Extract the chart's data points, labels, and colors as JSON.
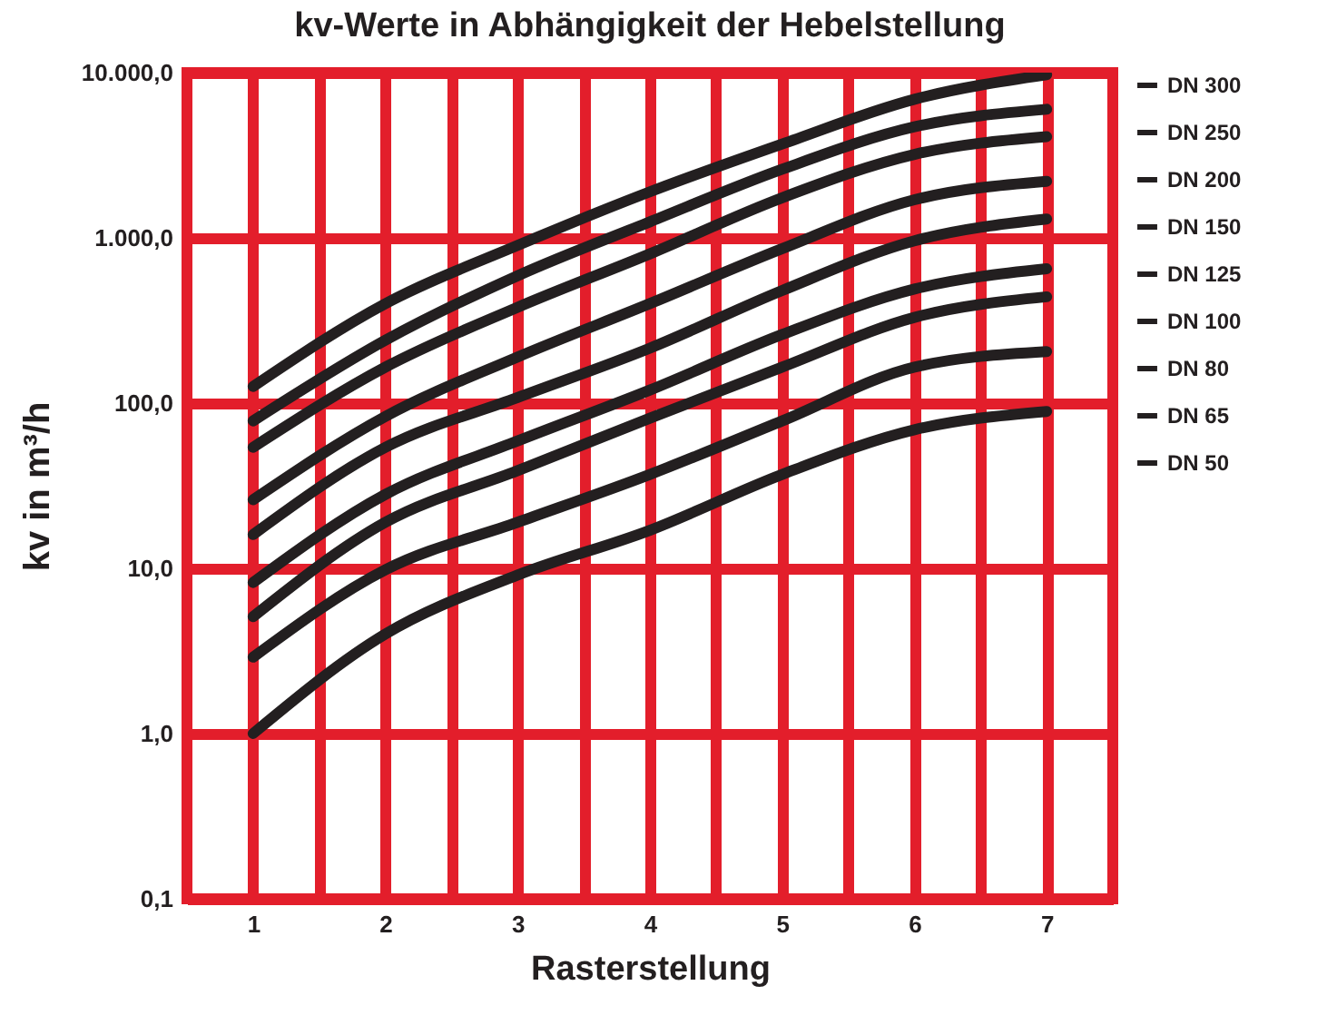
{
  "chart_data": {
    "type": "line",
    "title": "kv-Werte in Abhängigkeit der Hebelstellung",
    "xlabel": "Rasterstellung",
    "ylabel": "kv in m³/h",
    "x": [
      1,
      2,
      3,
      4,
      5,
      6,
      7
    ],
    "series": [
      {
        "name": "DN 300",
        "color": "#231f20",
        "values": [
          126,
          400,
          900,
          1900,
          3700,
          6900,
          9700
        ]
      },
      {
        "name": "DN 250",
        "color": "#231f20",
        "values": [
          78,
          240,
          590,
          1250,
          2600,
          4700,
          6000
        ]
      },
      {
        "name": "DN 200",
        "color": "#231f20",
        "values": [
          54,
          165,
          380,
          800,
          1750,
          3200,
          4100
        ]
      },
      {
        "name": "DN 150",
        "color": "#231f20",
        "values": [
          26,
          83,
          190,
          400,
          860,
          1700,
          2200
        ]
      },
      {
        "name": "DN 125",
        "color": "#231f20",
        "values": [
          16,
          54,
          108,
          215,
          480,
          960,
          1300
        ]
      },
      {
        "name": "DN 100",
        "color": "#231f20",
        "values": [
          8.2,
          28,
          59,
          120,
          260,
          490,
          650
        ]
      },
      {
        "name": "DN 80",
        "color": "#231f20",
        "values": [
          5.1,
          19,
          39,
          81,
          165,
          330,
          440
        ]
      },
      {
        "name": "DN 65",
        "color": "#231f20",
        "values": [
          2.9,
          9.8,
          19,
          37,
          78,
          165,
          205
        ]
      },
      {
        "name": "DN 50",
        "color": "#231f20",
        "values": [
          1.0,
          4.0,
          9.1,
          17,
          37,
          69,
          89
        ]
      }
    ],
    "log": "y",
    "xlim": [
      0.5,
      7.5
    ],
    "ylim": [
      0.1,
      10000
    ],
    "xticks": [
      1,
      {
        "value": 1.5,
        "label": null
      },
      2,
      {
        "value": 2.5,
        "label": null
      },
      3,
      {
        "value": 3.5,
        "label": null
      },
      4,
      {
        "value": 4.5,
        "label": null
      },
      5,
      {
        "value": 5.5,
        "label": null
      },
      6,
      {
        "value": 6.5,
        "label": null
      },
      7
    ],
    "yticks": [
      {
        "value": 0.1,
        "label": "0,1"
      },
      {
        "value": 1,
        "label": "1,0"
      },
      {
        "value": 10,
        "label": "10,0"
      },
      {
        "value": 100,
        "label": "100,0"
      },
      {
        "value": 1000,
        "label": "1.000,0"
      },
      {
        "value": 10000,
        "label": "10.000,0"
      }
    ],
    "grid": true,
    "legend": "right",
    "marker": "none",
    "line_style": "solid"
  }
}
